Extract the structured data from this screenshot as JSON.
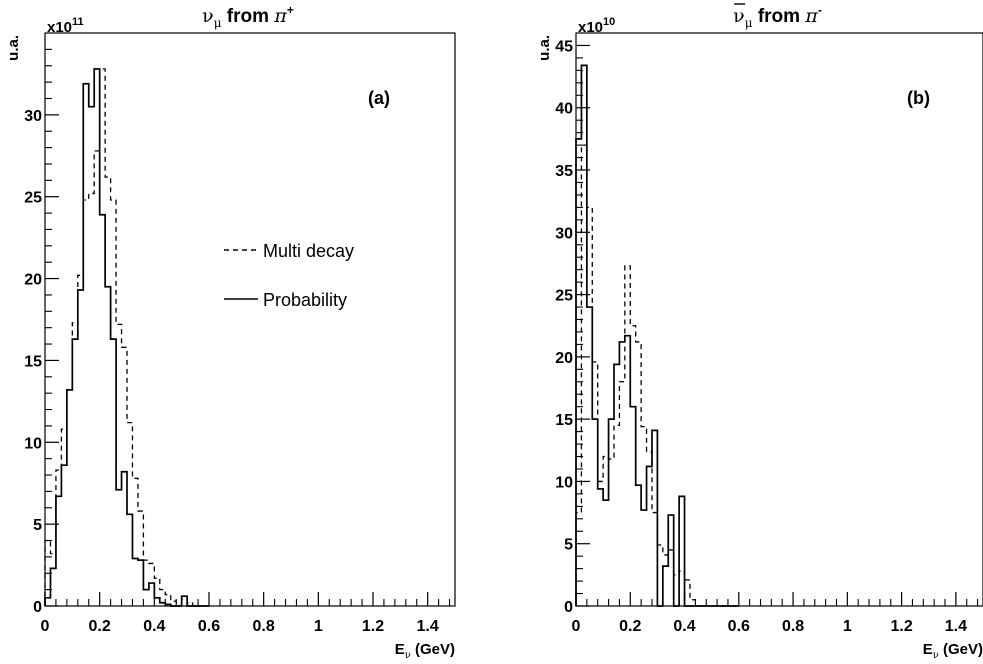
{
  "chart_data": [
    {
      "type": "histogram",
      "panel_label": "(a)",
      "title": {
        "particle": "ν",
        "sub": "μ",
        "from": " from ",
        "parent": "π",
        "sup": "+"
      },
      "ylabel": "u.a.",
      "y_multiplier": {
        "base": "x10",
        "exp": "11"
      },
      "xlabel": {
        "main": "E",
        "sub": "ν",
        "rest": " (GeV)"
      },
      "xlim": [
        0,
        1.5
      ],
      "ylim": [
        0,
        35
      ],
      "x_ticks": [
        0,
        0.2,
        0.4,
        0.6,
        0.8,
        1,
        1.2,
        1.4
      ],
      "x_tick_labels": [
        "0",
        "0.2",
        "0.4",
        "0.6",
        "0.8",
        "1",
        "1.2",
        "1.4"
      ],
      "y_ticks": [
        0,
        5,
        10,
        15,
        20,
        25,
        30
      ],
      "y_tick_labels": [
        "0",
        "5",
        "10",
        "15",
        "20",
        "25",
        "30"
      ],
      "bin_width": 0.02,
      "legend": {
        "position": "center-right",
        "entries": [
          {
            "label": "Multi decay",
            "style": "dashed"
          },
          {
            "label": "Probability",
            "style": "solid"
          }
        ]
      },
      "series": [
        {
          "name": "Multi decay",
          "style": "dashed",
          "x0": 0,
          "values": [
            4,
            3.2,
            8.3,
            10.8,
            13.2,
            17.3,
            20.2,
            24.8,
            25.2,
            27.8,
            32.8,
            26.2,
            24.8,
            17.2,
            15.8,
            11.2,
            7.8,
            5.8,
            2.8,
            2.6,
            1.7,
            1,
            0.7,
            0.3,
            0.2,
            0.4,
            0.2,
            0,
            0,
            0
          ]
        },
        {
          "name": "Probability",
          "style": "solid",
          "x0": 0,
          "values": [
            0.5,
            2.3,
            6.7,
            8.6,
            13.2,
            16.3,
            19.3,
            31.9,
            30.5,
            32.8,
            23.9,
            19.5,
            16.3,
            7.1,
            8.2,
            5.6,
            2.9,
            2.8,
            1,
            1.4,
            0.5,
            0.2,
            0.1,
            0,
            0,
            0.6,
            0,
            0,
            0,
            0
          ]
        }
      ]
    },
    {
      "type": "histogram",
      "panel_label": "(b)",
      "title": {
        "particle": "ν",
        "sub": "μ",
        "from": " from ",
        "parent": "π",
        "sup": "-",
        "bar": true
      },
      "ylabel": "u.a.",
      "y_multiplier": {
        "base": "x10",
        "exp": "10"
      },
      "xlabel": {
        "main": "E",
        "sub": "ν",
        "rest": " (GeV)"
      },
      "xlim": [
        0,
        1.5
      ],
      "ylim": [
        0,
        46
      ],
      "x_ticks": [
        0,
        0.2,
        0.4,
        0.6,
        0.8,
        1,
        1.2,
        1.4
      ],
      "x_tick_labels": [
        "0",
        "0.2",
        "0.4",
        "0.6",
        "0.8",
        "1",
        "1.2",
        "1.4"
      ],
      "y_ticks": [
        0,
        5,
        10,
        15,
        20,
        25,
        30,
        35,
        40,
        45
      ],
      "y_tick_labels": [
        "0",
        "5",
        "10",
        "15",
        "20",
        "25",
        "30",
        "35",
        "40",
        "45"
      ],
      "bin_width": 0.02,
      "series": [
        {
          "name": "Multi decay",
          "style": "dashed",
          "x0": 0,
          "values": [
            7.5,
            37,
            32,
            19.6,
            10,
            12,
            11.8,
            14.5,
            18,
            27.3,
            22.5,
            21.2,
            14.4,
            12.4,
            7.5,
            4.9,
            4.1,
            4.5,
            2.5,
            2.8,
            2.1,
            0.5,
            0,
            0,
            0,
            0,
            0,
            0,
            0,
            0
          ]
        },
        {
          "name": "Probability",
          "style": "solid",
          "x0": 0,
          "values": [
            37.5,
            43.4,
            24,
            15,
            9.4,
            8.5,
            15,
            19.4,
            21.2,
            21.7,
            16,
            9.7,
            7.7,
            11.2,
            14.1,
            0,
            3.2,
            7.3,
            0,
            8.8,
            0,
            0,
            0,
            0,
            0,
            0,
            0,
            0,
            0,
            0
          ]
        }
      ]
    }
  ]
}
